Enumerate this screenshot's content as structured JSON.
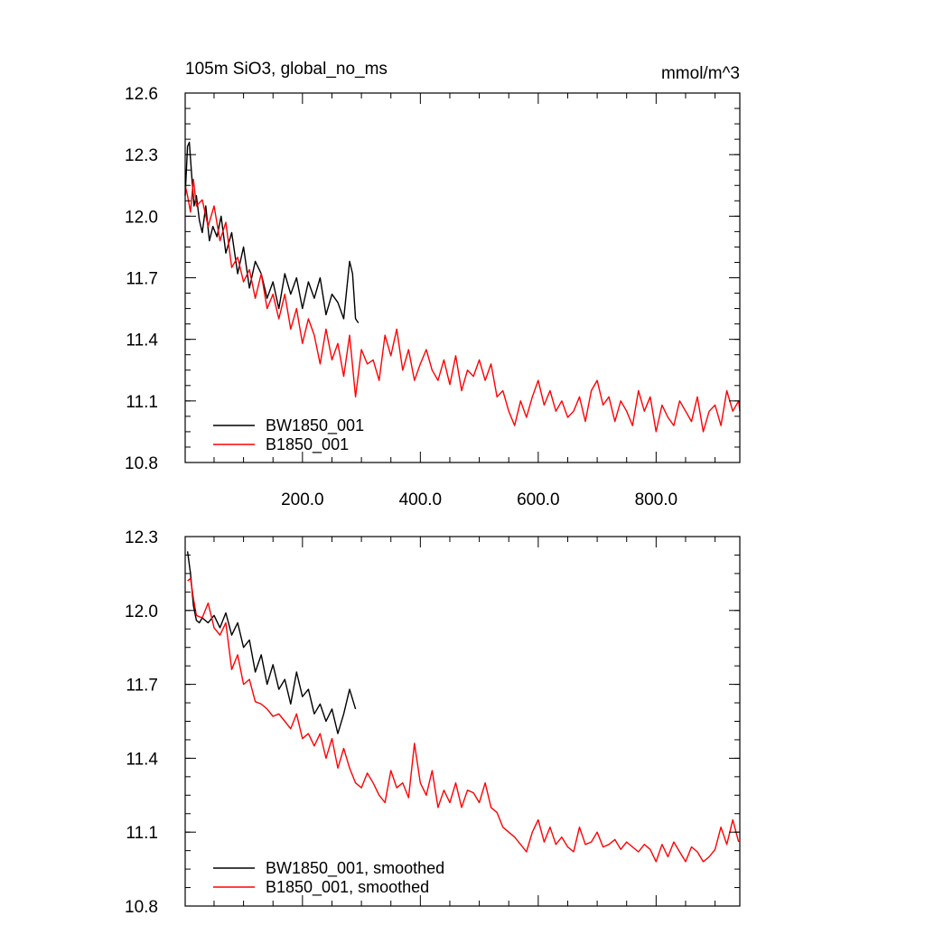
{
  "colors": {
    "black_series": "#000000",
    "red_series": "#ff0000"
  },
  "chart_data": [
    {
      "type": "line",
      "title": "105m SiO3, global_no_ms",
      "units": "mmol/m^3",
      "xlim": [
        1,
        942
      ],
      "ylim": [
        10.8,
        12.6
      ],
      "x_ticks": [
        200,
        400,
        600,
        800
      ],
      "x_tick_labels": [
        "200.0",
        "400.0",
        "600.0",
        "800.0"
      ],
      "y_ticks": [
        10.8,
        11.1,
        11.4,
        11.7,
        12.0,
        12.3,
        12.6
      ],
      "y_tick_labels": [
        "10.8",
        "11.1",
        "11.4",
        "11.7",
        "12.0",
        "12.3",
        "12.6"
      ],
      "legend_position": "bottom-left",
      "series": [
        {
          "name": "BW1850_001",
          "color": "#000000",
          "x": [
            1,
            5,
            8,
            12,
            16,
            20,
            25,
            30,
            36,
            42,
            48,
            55,
            62,
            70,
            80,
            90,
            100,
            110,
            120,
            130,
            140,
            150,
            160,
            170,
            180,
            190,
            200,
            210,
            220,
            230,
            240,
            250,
            260,
            270,
            280,
            285,
            290,
            295
          ],
          "values": [
            12.1,
            12.34,
            12.36,
            12.2,
            12.05,
            12.1,
            11.98,
            11.92,
            12.05,
            11.88,
            11.95,
            11.9,
            12.0,
            11.82,
            11.92,
            11.72,
            11.85,
            11.65,
            11.78,
            11.72,
            11.6,
            11.68,
            11.55,
            11.72,
            11.62,
            11.7,
            11.55,
            11.68,
            11.6,
            11.7,
            11.52,
            11.62,
            11.58,
            11.5,
            11.78,
            11.72,
            11.5,
            11.48
          ]
        },
        {
          "name": "B1850_001",
          "color": "#ff0000",
          "x": [
            1,
            5,
            10,
            15,
            20,
            30,
            40,
            50,
            60,
            70,
            80,
            90,
            100,
            110,
            120,
            130,
            140,
            150,
            160,
            170,
            180,
            190,
            200,
            210,
            220,
            230,
            240,
            250,
            260,
            270,
            280,
            290,
            300,
            310,
            320,
            330,
            340,
            350,
            360,
            370,
            380,
            390,
            400,
            410,
            420,
            430,
            440,
            450,
            460,
            470,
            480,
            490,
            500,
            510,
            520,
            530,
            540,
            550,
            560,
            570,
            580,
            590,
            600,
            610,
            620,
            630,
            640,
            650,
            660,
            670,
            680,
            690,
            700,
            710,
            720,
            730,
            740,
            750,
            760,
            770,
            780,
            790,
            800,
            810,
            820,
            830,
            840,
            850,
            860,
            870,
            880,
            890,
            900,
            910,
            920,
            930,
            940,
            942
          ],
          "values": [
            12.15,
            12.1,
            12.02,
            12.18,
            12.05,
            12.08,
            11.95,
            12.05,
            11.88,
            11.97,
            11.75,
            11.8,
            11.68,
            11.74,
            11.6,
            11.72,
            11.55,
            11.62,
            11.5,
            11.62,
            11.45,
            11.55,
            11.38,
            11.5,
            11.42,
            11.28,
            11.45,
            11.3,
            11.38,
            11.22,
            11.42,
            11.12,
            11.35,
            11.28,
            11.3,
            11.2,
            11.42,
            11.32,
            11.45,
            11.25,
            11.35,
            11.2,
            11.28,
            11.35,
            11.25,
            11.2,
            11.3,
            11.18,
            11.32,
            11.15,
            11.25,
            11.22,
            11.3,
            11.2,
            11.28,
            11.12,
            11.15,
            11.05,
            10.98,
            11.1,
            11.02,
            11.12,
            11.2,
            11.08,
            11.15,
            11.05,
            11.1,
            11.02,
            11.05,
            11.12,
            11.0,
            11.15,
            11.2,
            11.08,
            11.12,
            11.0,
            11.1,
            11.05,
            10.98,
            11.15,
            11.05,
            11.12,
            10.95,
            11.08,
            11.02,
            10.98,
            11.1,
            11.05,
            11.0,
            11.12,
            10.95,
            11.05,
            11.08,
            10.98,
            11.15,
            11.05,
            11.1,
            11.05
          ]
        }
      ]
    },
    {
      "type": "line",
      "xlim": [
        1,
        942
      ],
      "ylim": [
        10.8,
        12.3
      ],
      "y_ticks": [
        10.8,
        11.1,
        11.4,
        11.7,
        12.0,
        12.3
      ],
      "y_tick_labels": [
        "10.8",
        "11.1",
        "11.4",
        "11.7",
        "12.0",
        "12.3"
      ],
      "legend_position": "bottom-left",
      "series": [
        {
          "name": "BW1850_001, smoothed",
          "color": "#000000",
          "x": [
            5,
            10,
            15,
            20,
            25,
            30,
            40,
            50,
            60,
            70,
            80,
            90,
            100,
            110,
            120,
            130,
            140,
            150,
            160,
            170,
            180,
            190,
            200,
            210,
            220,
            230,
            240,
            250,
            260,
            270,
            280,
            290
          ],
          "values": [
            12.24,
            12.15,
            12.02,
            11.96,
            11.95,
            11.97,
            11.95,
            11.98,
            11.93,
            11.99,
            11.9,
            11.95,
            11.85,
            11.88,
            11.75,
            11.82,
            11.7,
            11.78,
            11.68,
            11.72,
            11.62,
            11.75,
            11.65,
            11.68,
            11.58,
            11.62,
            11.55,
            11.6,
            11.5,
            11.58,
            11.68,
            11.6
          ]
        },
        {
          "name": "B1850_001, smoothed",
          "color": "#ff0000",
          "x": [
            5,
            10,
            15,
            20,
            30,
            40,
            50,
            60,
            70,
            80,
            90,
            100,
            110,
            120,
            130,
            140,
            150,
            160,
            170,
            180,
            190,
            200,
            210,
            220,
            230,
            240,
            250,
            260,
            270,
            280,
            290,
            300,
            310,
            320,
            330,
            340,
            350,
            360,
            370,
            380,
            390,
            400,
            410,
            420,
            430,
            440,
            450,
            460,
            470,
            480,
            490,
            500,
            510,
            520,
            530,
            540,
            550,
            560,
            570,
            580,
            590,
            600,
            610,
            620,
            630,
            640,
            650,
            660,
            670,
            680,
            690,
            700,
            710,
            720,
            730,
            740,
            750,
            760,
            770,
            780,
            790,
            800,
            810,
            820,
            830,
            840,
            850,
            860,
            870,
            880,
            890,
            900,
            910,
            920,
            930,
            940
          ],
          "values": [
            12.12,
            12.13,
            12.05,
            11.98,
            11.97,
            12.03,
            11.93,
            11.9,
            11.95,
            11.76,
            11.82,
            11.7,
            11.72,
            11.63,
            11.62,
            11.6,
            11.57,
            11.58,
            11.55,
            11.52,
            11.58,
            11.48,
            11.5,
            11.45,
            11.5,
            11.4,
            11.48,
            11.36,
            11.44,
            11.36,
            11.3,
            11.28,
            11.34,
            11.3,
            11.25,
            11.22,
            11.35,
            11.28,
            11.3,
            11.24,
            11.46,
            11.3,
            11.25,
            11.35,
            11.2,
            11.27,
            11.22,
            11.3,
            11.2,
            11.27,
            11.26,
            11.22,
            11.3,
            11.2,
            11.18,
            11.12,
            11.1,
            11.08,
            11.05,
            11.02,
            11.1,
            11.15,
            11.06,
            11.12,
            11.05,
            11.08,
            11.04,
            11.02,
            11.12,
            11.05,
            11.06,
            11.1,
            11.04,
            11.05,
            11.07,
            11.03,
            11.06,
            11.04,
            11.02,
            11.05,
            11.03,
            10.98,
            11.05,
            11.0,
            11.06,
            11.02,
            10.98,
            11.04,
            11.02,
            10.98,
            11.0,
            11.03,
            11.12,
            11.05,
            11.15,
            11.06
          ]
        }
      ]
    }
  ]
}
